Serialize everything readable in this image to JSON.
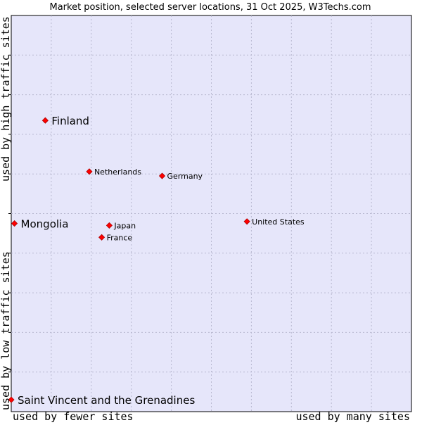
{
  "chart_data": {
    "type": "scatter",
    "title": "Market position, selected server locations, 31 Oct 2025, W3Techs.com",
    "xlabel_left": "used by fewer sites",
    "xlabel_right": "used by many sites",
    "ylabel_top": "used by high traffic sites",
    "ylabel_bottom": "used by low traffic sites",
    "xlim": [
      0,
      100
    ],
    "ylim": [
      0,
      100
    ],
    "grid": true,
    "grid_divisions": 10,
    "colors": {
      "plot_background": "#e6e6fa",
      "grid": "#b8b8d0",
      "axis": "#000000",
      "marker": "#ff0000",
      "marker_edge": "#aa0000"
    },
    "points": [
      {
        "label": "Finland",
        "x": 8.5,
        "y": 73.5,
        "highlight": true
      },
      {
        "label": "Netherlands",
        "x": 19.5,
        "y": 60.6,
        "highlight": false
      },
      {
        "label": "Germany",
        "x": 37.7,
        "y": 59.5,
        "highlight": false
      },
      {
        "label": "Mongolia",
        "x": 0.8,
        "y": 47.5,
        "highlight": true
      },
      {
        "label": "Japan",
        "x": 24.5,
        "y": 47.0,
        "highlight": false
      },
      {
        "label": "United States",
        "x": 58.9,
        "y": 48.0,
        "highlight": false
      },
      {
        "label": "France",
        "x": 22.6,
        "y": 44.0,
        "highlight": false
      },
      {
        "label": "Saint Vincent and the Grenadines",
        "x": 0.0,
        "y": 3.0,
        "highlight": true
      }
    ]
  }
}
